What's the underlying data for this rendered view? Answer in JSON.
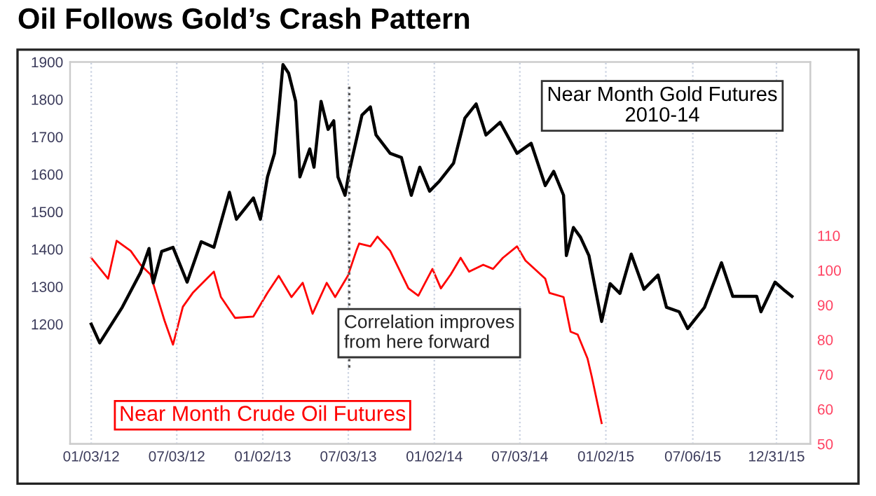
{
  "chart_data": {
    "type": "line",
    "title": "Oil Follows Gold’s Crash Pattern",
    "xlim": [
      "2011-11-19",
      "2016-03-12"
    ],
    "xticks": [
      {
        "value": "2012-01-03",
        "label": "01/03/12"
      },
      {
        "value": "2012-07-03",
        "label": "07/03/12"
      },
      {
        "value": "2013-01-02",
        "label": "01/02/13"
      },
      {
        "value": "2013-07-03",
        "label": "07/03/13"
      },
      {
        "value": "2014-01-02",
        "label": "01/02/14"
      },
      {
        "value": "2014-07-03",
        "label": "07/03/14"
      },
      {
        "value": "2015-01-02",
        "label": "01/02/15"
      },
      {
        "value": "2015-07-06",
        "label": "07/06/15"
      },
      {
        "value": "2015-12-31",
        "label": "12/31/15"
      }
    ],
    "ylim": [
      880,
      1900
    ],
    "yticks": [
      1200,
      1300,
      1400,
      1500,
      1600,
      1700,
      1800,
      1900
    ],
    "y2lim": [
      50,
      160
    ],
    "y2ticks": [
      50,
      60,
      70,
      80,
      90,
      100,
      110
    ],
    "grid": "x",
    "legend": false,
    "ref_lines": [
      {
        "axis": "x",
        "value": "2013-07-05",
        "color": "#555555",
        "line_style": "dotted"
      }
    ],
    "annotations": [
      "Correlation improves\nfrom here forward"
    ],
    "series": [
      {
        "name": "Near Month Gold Futures\n2010-14",
        "color": "#000000",
        "axis": "y",
        "x": [
          "2012-01-03",
          "2012-01-21",
          "2012-03-09",
          "2012-04-17",
          "2012-05-05",
          "2012-05-14",
          "2012-06-01",
          "2012-06-25",
          "2012-07-25",
          "2012-08-24",
          "2012-09-20",
          "2012-10-23",
          "2012-11-07",
          "2012-12-13",
          "2012-12-28",
          "2013-01-12",
          "2013-01-27",
          "2013-02-05",
          "2013-02-14",
          "2013-02-26",
          "2013-03-13",
          "2013-03-22",
          "2013-04-12",
          "2013-04-21",
          "2013-05-06",
          "2013-05-21",
          "2013-06-02",
          "2013-06-11",
          "2013-06-26",
          "2013-07-05",
          "2013-08-01",
          "2013-08-19",
          "2013-08-31",
          "2013-09-30",
          "2013-10-24",
          "2013-11-14",
          "2013-12-02",
          "2013-12-23",
          "2014-01-13",
          "2014-02-12",
          "2014-03-08",
          "2014-04-01",
          "2014-04-22",
          "2014-05-22",
          "2014-06-27",
          "2014-07-27",
          "2014-08-26",
          "2014-09-13",
          "2014-10-04",
          "2014-10-10",
          "2014-10-25",
          "2014-11-09",
          "2014-11-27",
          "2014-12-24",
          "2015-01-11",
          "2015-02-01",
          "2015-02-25",
          "2015-03-24",
          "2015-04-23",
          "2015-05-11",
          "2015-06-07",
          "2015-06-25",
          "2015-07-31",
          "2015-09-05",
          "2015-09-29",
          "2015-11-19",
          "2015-11-28",
          "2015-12-28",
          "2016-01-18",
          "2016-02-02"
        ],
        "values": [
          1200,
          1150,
          1245,
          1338,
          1402,
          1310,
          1394,
          1405,
          1312,
          1420,
          1405,
          1552,
          1480,
          1537,
          1480,
          1593,
          1656,
          1769,
          1893,
          1870,
          1795,
          1593,
          1668,
          1619,
          1795,
          1720,
          1743,
          1593,
          1544,
          1608,
          1758,
          1780,
          1705,
          1656,
          1645,
          1544,
          1619,
          1555,
          1582,
          1630,
          1750,
          1788,
          1705,
          1739,
          1656,
          1683,
          1570,
          1608,
          1544,
          1383,
          1458,
          1432,
          1383,
          1207,
          1308,
          1282,
          1387,
          1293,
          1331,
          1245,
          1233,
          1188,
          1245,
          1364,
          1274,
          1274,
          1233,
          1312,
          1289,
          1274
        ]
      },
      {
        "name": "Near Month Crude Oil Futures",
        "color": "#ff0000",
        "axis": "y2",
        "x": [
          "2012-01-03",
          "2012-02-08",
          "2012-02-26",
          "2012-03-27",
          "2012-04-17",
          "2012-05-08",
          "2012-06-07",
          "2012-06-25",
          "2012-07-16",
          "2012-08-06",
          "2012-09-05",
          "2012-09-20",
          "2012-10-05",
          "2012-11-04",
          "2012-12-13",
          "2013-01-12",
          "2013-02-05",
          "2013-03-04",
          "2013-03-28",
          "2013-04-18",
          "2013-05-18",
          "2013-06-05",
          "2013-07-02",
          "2013-07-20",
          "2013-07-26",
          "2013-08-19",
          "2013-09-03",
          "2013-09-30",
          "2013-11-08",
          "2013-11-29",
          "2013-12-29",
          "2014-01-16",
          "2014-02-06",
          "2014-02-27",
          "2014-03-17",
          "2014-04-16",
          "2014-05-07",
          "2014-05-28",
          "2014-06-27",
          "2014-07-15",
          "2014-08-26",
          "2014-09-04",
          "2014-10-04",
          "2014-10-19",
          "2014-11-03",
          "2014-11-24",
          "2014-12-03",
          "2014-12-24"
        ],
        "values": [
          103.6,
          97.6,
          108.5,
          105.6,
          101.6,
          98.8,
          85.5,
          78.6,
          89.5,
          93.5,
          97.6,
          99.6,
          92.3,
          86.3,
          86.7,
          93.5,
          98.4,
          92.3,
          96.4,
          87.5,
          96.4,
          92.3,
          98.4,
          105.6,
          107.7,
          106.9,
          109.7,
          105.6,
          94.8,
          92.7,
          100.4,
          94.8,
          98.8,
          103.6,
          99.6,
          101.6,
          100.4,
          103.6,
          106.9,
          102.8,
          97.6,
          93.5,
          92.3,
          82.3,
          81.5,
          74.6,
          69.4,
          56.0
        ]
      }
    ]
  }
}
